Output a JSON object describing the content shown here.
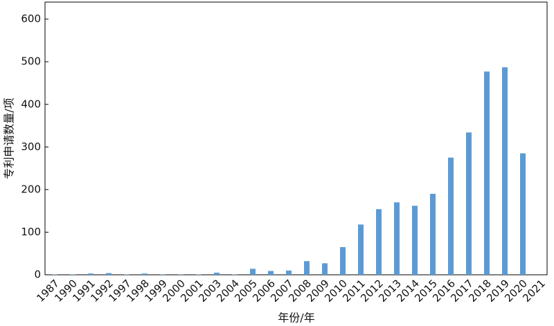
{
  "chart_data": {
    "type": "bar",
    "x_label": "年份/年",
    "y_label": "专利申请数量/项",
    "categories": [
      "1987",
      "1990",
      "1991",
      "1992",
      "1997",
      "1998",
      "1999",
      "2000",
      "2001",
      "2003",
      "2004",
      "2005",
      "2006",
      "2007",
      "2008",
      "2009",
      "2010",
      "2011",
      "2012",
      "2013",
      "2014",
      "2015",
      "2016",
      "2017",
      "2018",
      "2019",
      "2020",
      "2021"
    ],
    "values": [
      1,
      1,
      3,
      4,
      1,
      3,
      1,
      1,
      1,
      5,
      1,
      14,
      9,
      10,
      32,
      27,
      65,
      118,
      154,
      170,
      162,
      190,
      275,
      334,
      477,
      487,
      285,
      0
    ],
    "color": "#5b9bd5",
    "ylim": [
      0,
      640
    ],
    "yticks": [
      0,
      100,
      200,
      300,
      400,
      500,
      600
    ],
    "grid": false
  }
}
